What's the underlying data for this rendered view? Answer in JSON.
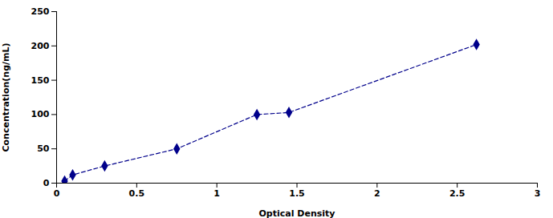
{
  "chart_data": {
    "type": "line",
    "xlabel": "Optical Density",
    "ylabel": "Concentration(ng/mL)",
    "x": [
      0.05,
      0.1,
      0.3,
      0.75,
      1.25,
      1.45,
      2.62
    ],
    "values": [
      3,
      12,
      25,
      50,
      100,
      103,
      202
    ],
    "color": "#00008B",
    "marker": "diamond",
    "line_style": "dashed",
    "xlim": [
      0,
      3
    ],
    "xticks": [
      0,
      0.5,
      1,
      1.5,
      2,
      2.5,
      3
    ],
    "ylim": [
      0,
      250
    ],
    "yticks": [
      0,
      50,
      100,
      150,
      200,
      250
    ],
    "grid": false
  }
}
